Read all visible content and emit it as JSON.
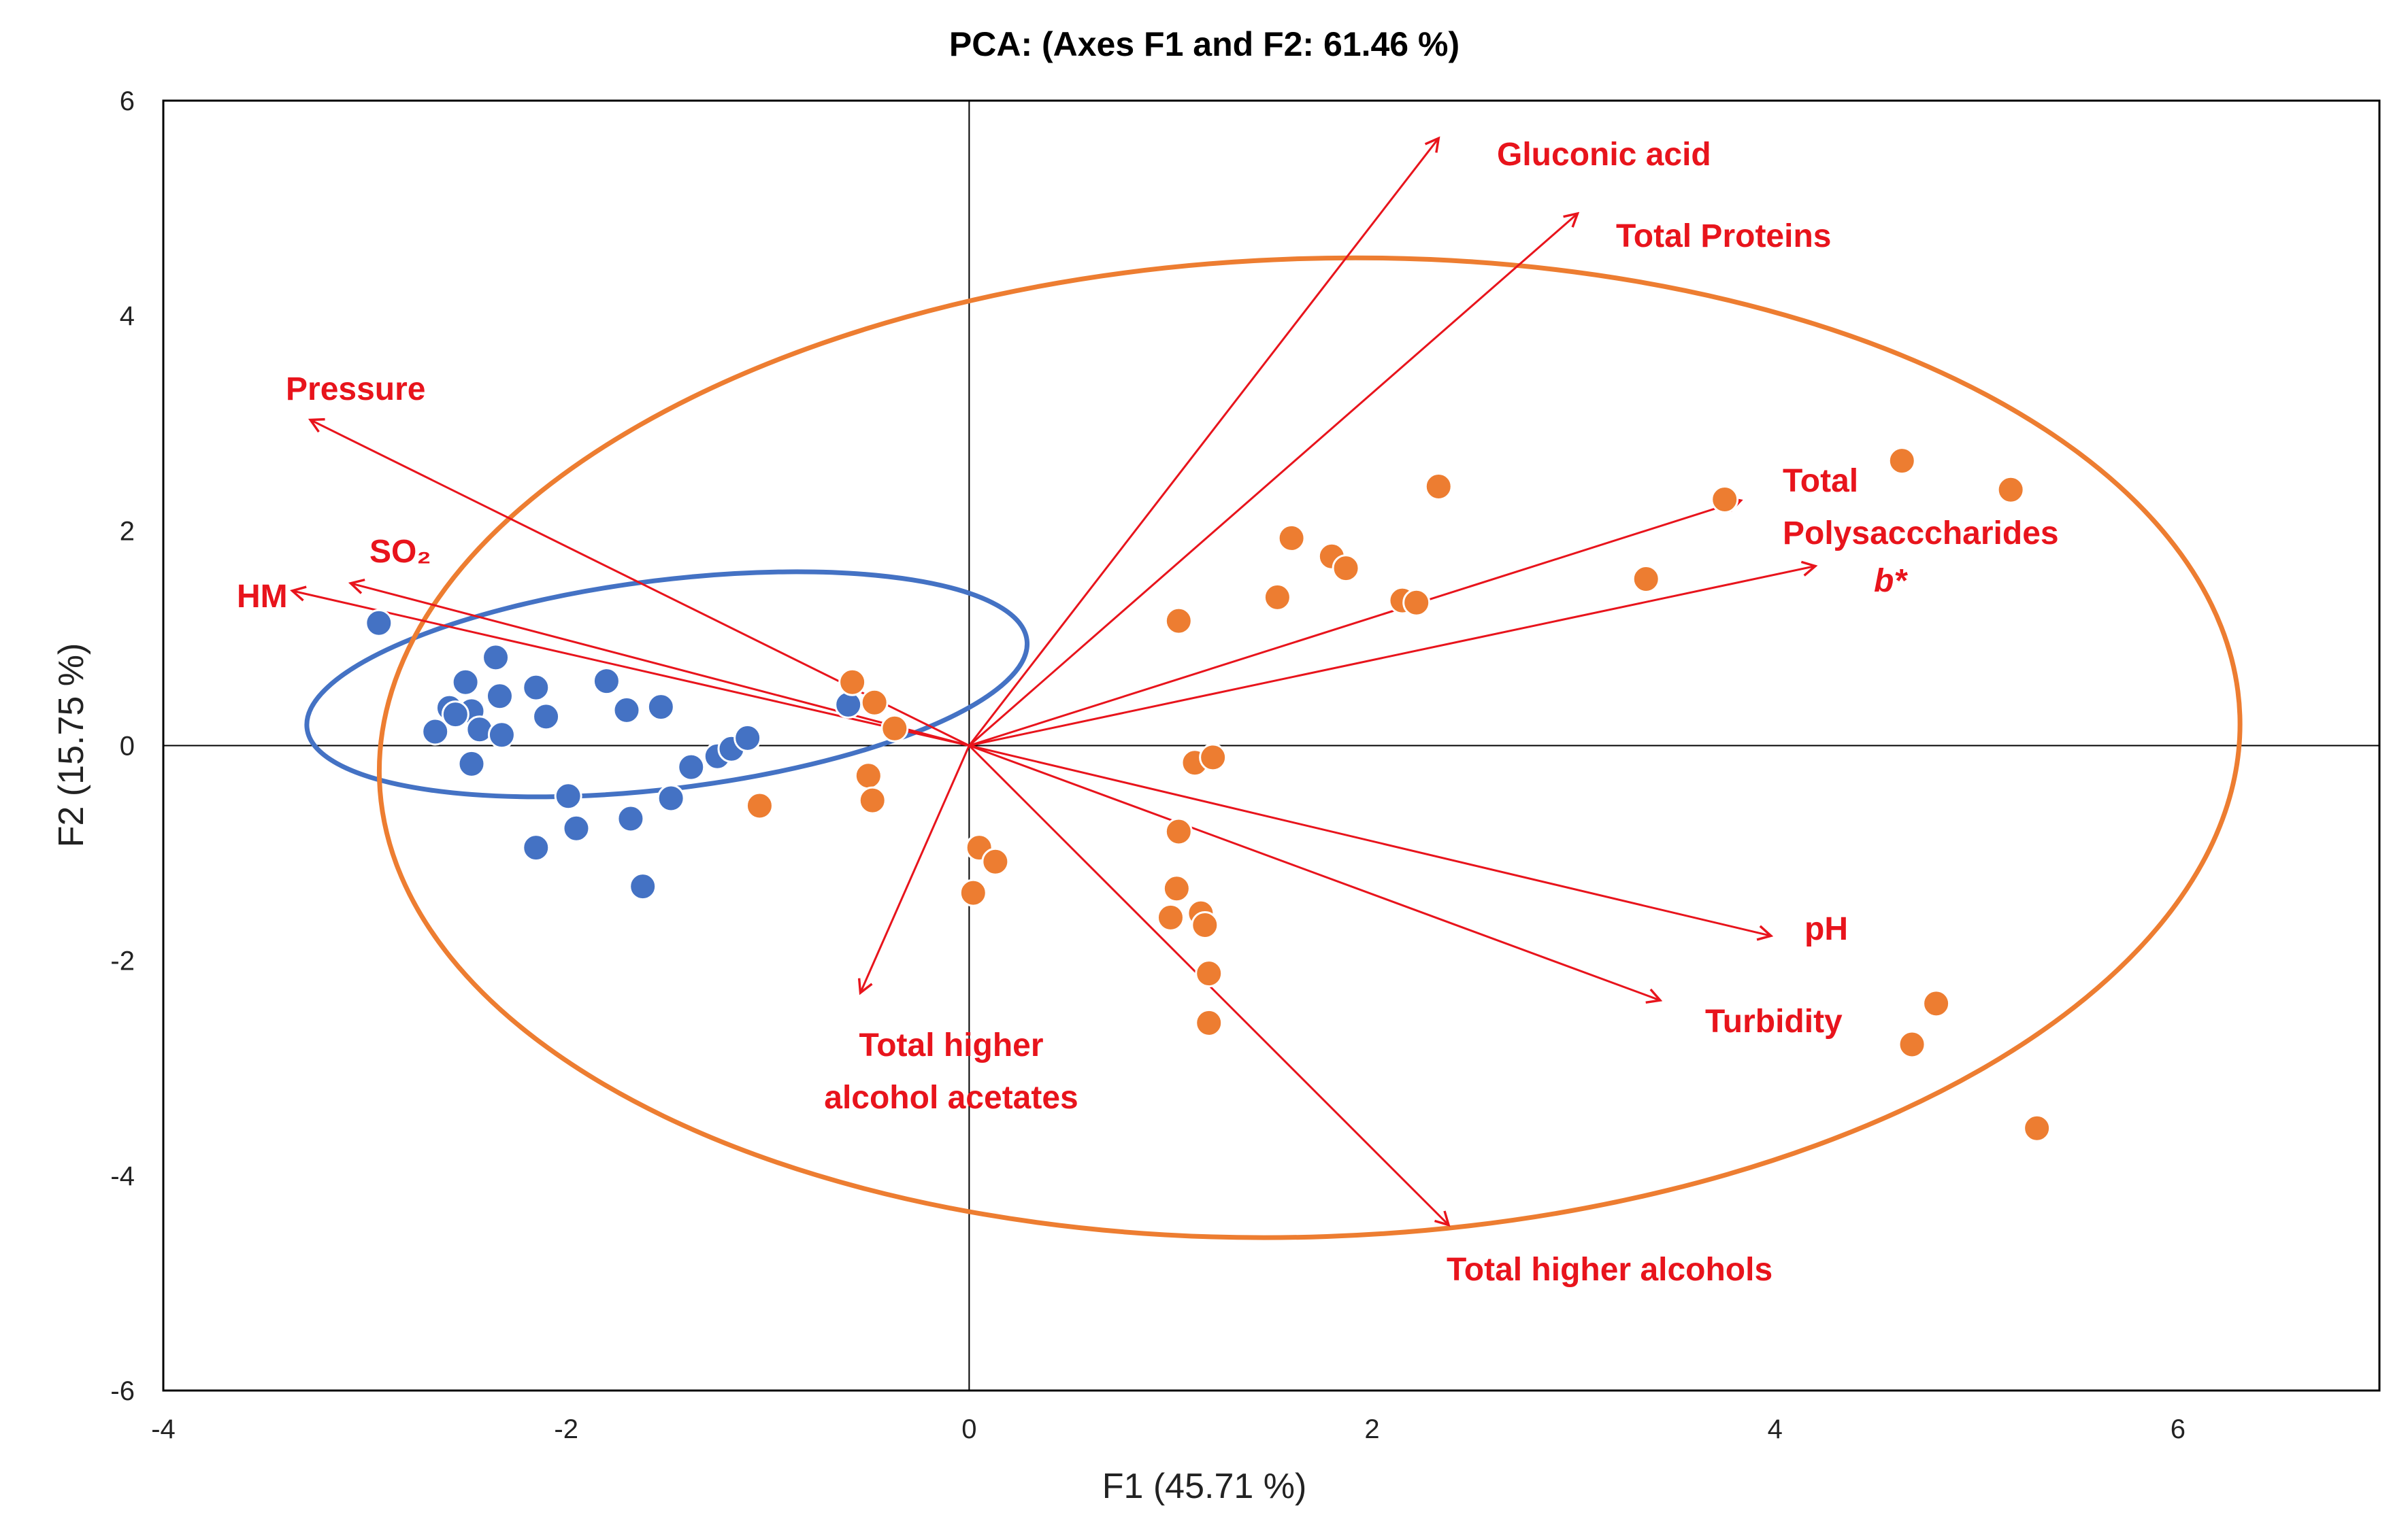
{
  "chart_data": {
    "type": "scatter",
    "title": "PCA: (Axes F1 and F2: 61.46 %)",
    "xlabel": "F1 (45.71 %)",
    "ylabel": "F2 (15.75 %)",
    "xlim": [
      -4,
      7
    ],
    "ylim": [
      -6,
      6
    ],
    "xticks": [
      -4,
      -2,
      0,
      2,
      4,
      6
    ],
    "yticks": [
      -6,
      -4,
      -2,
      0,
      2,
      4,
      6
    ],
    "xtick_labels": [
      "-4",
      "-2",
      "0",
      "2",
      "4",
      "6"
    ],
    "ytick_labels": [
      "-6",
      "-4",
      "-2",
      "0",
      "2",
      "4",
      "6"
    ],
    "grid": false,
    "colors": {
      "group_blue": "#4472c4",
      "group_orange": "#ed7d31",
      "vectors": "#e8141c",
      "ellipse_blue": "#4472c4",
      "ellipse_orange": "#ed7d31"
    },
    "series": [
      {
        "color": "#4472c4",
        "points": [
          [
            -2.93,
            1.14
          ],
          [
            -2.35,
            0.82
          ],
          [
            -2.5,
            0.59
          ],
          [
            -2.15,
            0.54
          ],
          [
            -1.8,
            0.6
          ],
          [
            -2.58,
            0.35
          ],
          [
            -2.47,
            0.32
          ],
          [
            -2.33,
            0.46
          ],
          [
            -2.1,
            0.27
          ],
          [
            -1.7,
            0.33
          ],
          [
            -1.53,
            0.36
          ],
          [
            -2.65,
            0.13
          ],
          [
            -2.43,
            0.15
          ],
          [
            -2.32,
            0.1
          ],
          [
            -2.55,
            0.29
          ],
          [
            -2.47,
            -0.17
          ],
          [
            -1.38,
            -0.2
          ],
          [
            -1.25,
            -0.1
          ],
          [
            -1.18,
            -0.03
          ],
          [
            -1.1,
            0.07
          ],
          [
            -0.6,
            0.38
          ],
          [
            -1.48,
            -0.49
          ],
          [
            -1.99,
            -0.47
          ],
          [
            -1.68,
            -0.68
          ],
          [
            -1.95,
            -0.77
          ],
          [
            -2.15,
            -0.95
          ],
          [
            -1.62,
            -1.31
          ]
        ]
      },
      {
        "color": "#ed7d31",
        "points": [
          [
            4.63,
            2.65
          ],
          [
            5.17,
            2.38
          ],
          [
            3.75,
            2.29
          ],
          [
            2.33,
            2.41
          ],
          [
            3.36,
            1.55
          ],
          [
            1.6,
            1.93
          ],
          [
            1.8,
            1.76
          ],
          [
            1.87,
            1.65
          ],
          [
            1.53,
            1.38
          ],
          [
            2.15,
            1.35
          ],
          [
            2.22,
            1.33
          ],
          [
            1.04,
            1.16
          ],
          [
            -0.58,
            0.59
          ],
          [
            -0.47,
            0.4
          ],
          [
            -0.37,
            0.16
          ],
          [
            -1.04,
            -0.56
          ],
          [
            -0.5,
            -0.28
          ],
          [
            -0.48,
            -0.51
          ],
          [
            1.12,
            -0.16
          ],
          [
            1.21,
            -0.11
          ],
          [
            1.04,
            -0.8
          ],
          [
            0.05,
            -0.95
          ],
          [
            0.13,
            -1.08
          ],
          [
            0.02,
            -1.37
          ],
          [
            1.03,
            -1.33
          ],
          [
            1.0,
            -1.6
          ],
          [
            1.15,
            -1.56
          ],
          [
            1.17,
            -1.67
          ],
          [
            1.19,
            -2.12
          ],
          [
            1.19,
            -2.58
          ],
          [
            4.8,
            -2.4
          ],
          [
            4.68,
            -2.78
          ],
          [
            5.3,
            -3.56
          ]
        ]
      }
    ],
    "vectors": [
      {
        "label": "Gluconic acid",
        "x": 2.33,
        "y": 5.65
      },
      {
        "label": "Total Proteins",
        "x": 3.02,
        "y": 4.95
      },
      {
        "label": "Pressure",
        "x": -3.27,
        "y": 3.03
      },
      {
        "label": "SO₂",
        "x": -3.07,
        "y": 1.51
      },
      {
        "label": "HM",
        "x": -3.36,
        "y": 1.44
      },
      {
        "label": "Total Polysacccharides",
        "x": 3.83,
        "y": 2.28
      },
      {
        "label": "b*",
        "x": 4.2,
        "y": 1.67
      },
      {
        "label": "pH",
        "x": 3.98,
        "y": -1.77
      },
      {
        "label": "Turbidity",
        "x": 3.43,
        "y": -2.37
      },
      {
        "label": "Total higher alcohol acetates",
        "x": -0.54,
        "y": -2.3
      },
      {
        "label": "Total higher alcohols",
        "x": 2.38,
        "y": -4.46
      }
    ]
  }
}
